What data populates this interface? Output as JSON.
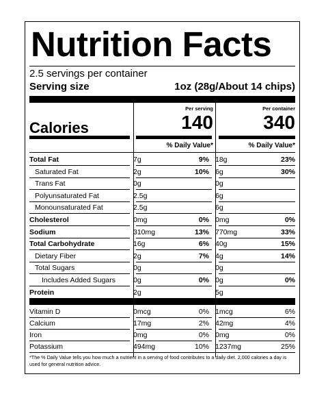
{
  "title": "Nutrition Facts",
  "servings_per_container": "2.5 servings per container",
  "serving_size_label": "Serving size",
  "serving_size_value": "1oz (28g/About 14 chips)",
  "col_headers": [
    "Per serving",
    "Per container"
  ],
  "calories_label": "Calories",
  "calories": [
    "140",
    "340"
  ],
  "dv_header": "% Daily Value*",
  "nutrients": [
    {
      "label": "Total Fat",
      "bold": true,
      "indent": 0,
      "s_amt": "7g",
      "s_dv": "9%",
      "c_amt": "18g",
      "c_dv": "23%"
    },
    {
      "label": "Saturated Fat",
      "bold": false,
      "indent": 1,
      "s_amt": "2g",
      "s_dv": "10%",
      "c_amt": "6g",
      "c_dv": "30%"
    },
    {
      "label": "Trans Fat",
      "bold": false,
      "indent": 1,
      "s_amt": "0g",
      "s_dv": "",
      "c_amt": "0g",
      "c_dv": ""
    },
    {
      "label": "Polyunsaturated Fat",
      "bold": false,
      "indent": 1,
      "s_amt": "2.5g",
      "s_dv": "",
      "c_amt": "6g",
      "c_dv": ""
    },
    {
      "label": "Monounsaturated Fat",
      "bold": false,
      "indent": 1,
      "s_amt": "2.5g",
      "s_dv": "",
      "c_amt": "6g",
      "c_dv": ""
    },
    {
      "label": "Cholesterol",
      "bold": true,
      "indent": 0,
      "s_amt": "0mg",
      "s_dv": "0%",
      "c_amt": "0mg",
      "c_dv": "0%"
    },
    {
      "label": "Sodium",
      "bold": true,
      "indent": 0,
      "s_amt": "310mg",
      "s_dv": "13%",
      "c_amt": "770mg",
      "c_dv": "33%"
    },
    {
      "label": "Total Carbohydrate",
      "bold": true,
      "indent": 0,
      "s_amt": "16g",
      "s_dv": "6%",
      "c_amt": "40g",
      "c_dv": "15%"
    },
    {
      "label": "Dietary Fiber",
      "bold": false,
      "indent": 1,
      "s_amt": "2g",
      "s_dv": "7%",
      "c_amt": "4g",
      "c_dv": "14%"
    },
    {
      "label": "Total Sugars",
      "bold": false,
      "indent": 1,
      "s_amt": "0g",
      "s_dv": "",
      "c_amt": "0g",
      "c_dv": ""
    },
    {
      "label": "Includes Added Sugars",
      "bold": false,
      "indent": 2,
      "s_amt": "0g",
      "s_dv": "0%",
      "c_amt": "0g",
      "c_dv": "0%"
    },
    {
      "label": "Protein",
      "bold": true,
      "indent": 0,
      "s_amt": "2g",
      "s_dv": "",
      "c_amt": "5g",
      "c_dv": ""
    }
  ],
  "vitamins": [
    {
      "label": "Vitamin D",
      "s_amt": "0mcg",
      "s_dv": "0%",
      "c_amt": "1mcg",
      "c_dv": "6%"
    },
    {
      "label": "Calcium",
      "s_amt": "17mg",
      "s_dv": "2%",
      "c_amt": "42mg",
      "c_dv": "4%"
    },
    {
      "label": "Iron",
      "s_amt": "0mg",
      "s_dv": "0%",
      "c_amt": "0mg",
      "c_dv": "0%"
    },
    {
      "label": "Potassium",
      "s_amt": "494mg",
      "s_dv": "10%",
      "c_amt": "1237mg",
      "c_dv": "25%"
    }
  ],
  "footnote": "*The % Daily Value tells you how much a nutrient in a serving of food contributes to a daily diet. 2,000 calories a day is used for general nutrition advice."
}
